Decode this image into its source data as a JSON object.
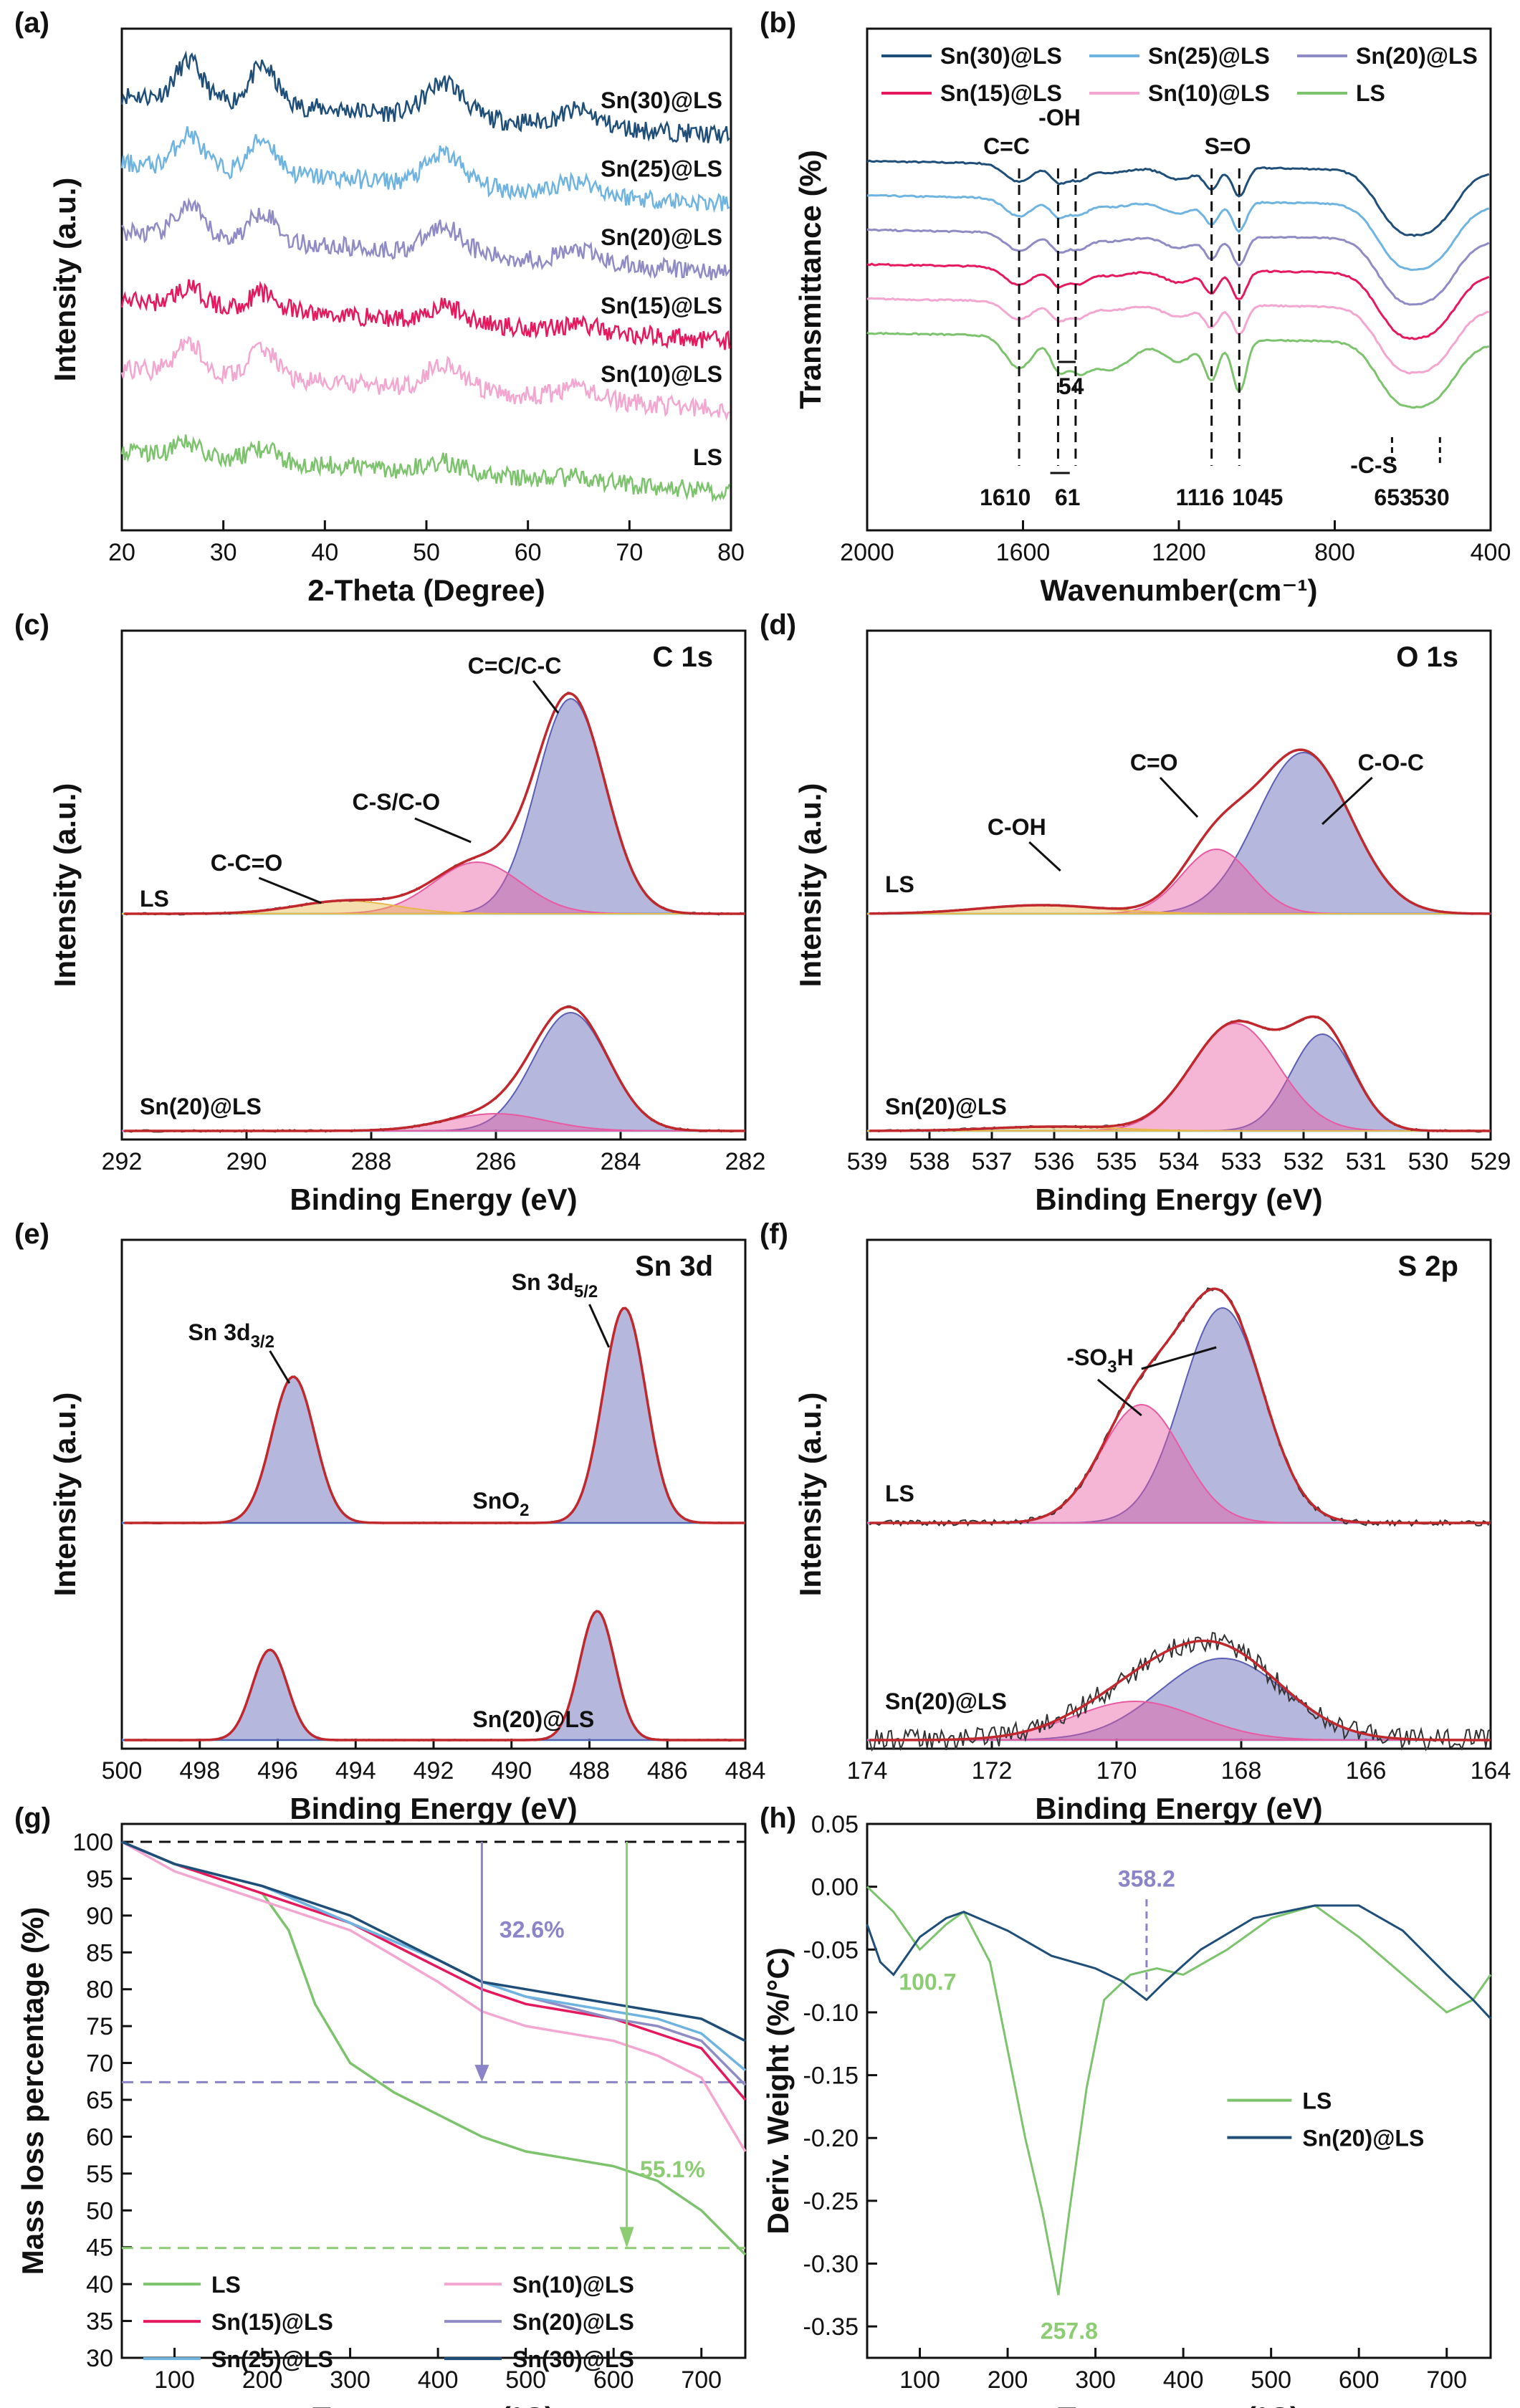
{
  "figure": {
    "colors": {
      "sn30": "#1f4e79",
      "sn25": "#6fb4e0",
      "sn20": "#8f8bc4",
      "sn15": "#e6195e",
      "sn10": "#f3a6cf",
      "ls": "#7dc36e",
      "fit": "#c0282d",
      "raw": "#333333",
      "base": "#7fd0df",
      "fill_blue": "#5b5fb3",
      "fill_pink": "#e85aa2",
      "fill_yellow": "#e8b84b",
      "ann_purple": "#8a84c8",
      "ann_green": "#8ccc73"
    }
  },
  "chart_data": [
    {
      "id": "a",
      "panel_label": "(a)",
      "type": "line",
      "xlabel": "2-Theta (Degree)",
      "ylabel": "Intensity (a.u.)",
      "xlim": [
        20,
        80
      ],
      "xticks": [
        "20",
        "30",
        "40",
        "50",
        "60",
        "70",
        "80"
      ],
      "peaks": [
        26.6,
        33.9,
        51.8,
        65.0
      ],
      "series": [
        {
          "name": "Sn(30)@LS",
          "color": "sn30",
          "offset": 5.2,
          "amp": 1.0
        },
        {
          "name": "Sn(25)@LS",
          "color": "sn25",
          "offset": 4.2,
          "amp": 0.9
        },
        {
          "name": "Sn(20)@LS",
          "color": "sn20",
          "offset": 3.2,
          "amp": 0.8
        },
        {
          "name": "Sn(15)@LS",
          "color": "sn15",
          "offset": 2.2,
          "amp": 0.45
        },
        {
          "name": "Sn(10)@LS",
          "color": "sn10",
          "offset": 1.2,
          "amp": 0.8
        },
        {
          "name": "LS",
          "color": "ls",
          "offset": 0.0,
          "amp": 0.3
        }
      ]
    },
    {
      "id": "b",
      "panel_label": "(b)",
      "type": "line",
      "xlabel": "Wavenumber(cm⁻¹)",
      "ylabel": "Transmittance (%)",
      "xlim": [
        2000,
        400
      ],
      "xticks": [
        "2000",
        "1600",
        "1200",
        "800",
        "400"
      ],
      "legend": [
        "Sn(30)@LS",
        "Sn(25)@LS",
        "Sn(20)@LS",
        "Sn(15)@LS",
        "Sn(10)@LS",
        "LS"
      ],
      "annotations": {
        "cc": "C=C",
        "oh": "-OH",
        "so": "S=O",
        "cs": "-C-S",
        "w1610": "1610",
        "w61": "61",
        "w54": "54",
        "w1116": "1116",
        "w1045": "1045",
        "w653": "653",
        "w530": "530"
      },
      "vlines": [
        1610,
        1510,
        1465,
        1116,
        1045
      ],
      "series": [
        {
          "name": "Sn(30)@LS",
          "color": "sn30",
          "offset": 5
        },
        {
          "name": "Sn(25)@LS",
          "color": "sn25",
          "offset": 4
        },
        {
          "name": "Sn(20)@LS",
          "color": "sn20",
          "offset": 3
        },
        {
          "name": "Sn(15)@LS",
          "color": "sn15",
          "offset": 2
        },
        {
          "name": "Sn(10)@LS",
          "color": "sn10",
          "offset": 1
        },
        {
          "name": "LS",
          "color": "ls",
          "offset": 0
        }
      ]
    },
    {
      "id": "c",
      "panel_label": "(c)",
      "type": "line",
      "title": "C 1s",
      "xlabel": "Binding Energy (eV)",
      "ylabel": "Intensity (a.u.)",
      "xlim": [
        292,
        282
      ],
      "xticks": [
        "292",
        "290",
        "288",
        "286",
        "284",
        "282"
      ],
      "labels": {
        "top": "LS",
        "bottom": "Sn(20)@LS",
        "p1": "C=C/C-C",
        "p2": "C-S/C-O",
        "p3": "C-C=O"
      },
      "top": [
        {
          "center": 284.8,
          "height": 1.0,
          "width": 0.55,
          "fill": "fill_blue"
        },
        {
          "center": 286.3,
          "height": 0.24,
          "width": 0.7,
          "fill": "fill_pink"
        },
        {
          "center": 288.4,
          "height": 0.06,
          "width": 0.8,
          "fill": "fill_yellow"
        }
      ],
      "bottom": [
        {
          "center": 284.8,
          "height": 0.55,
          "width": 0.6,
          "fill": "fill_blue"
        },
        {
          "center": 286.0,
          "height": 0.08,
          "width": 0.8,
          "fill": "fill_pink"
        }
      ]
    },
    {
      "id": "d",
      "panel_label": "(d)",
      "type": "line",
      "title": "O 1s",
      "xlabel": "Binding Energy (eV)",
      "ylabel": "Intensity (a.u.)",
      "xlim": [
        539,
        529
      ],
      "xticks": [
        "539",
        "538",
        "537",
        "536",
        "535",
        "534",
        "533",
        "532",
        "531",
        "530",
        "529"
      ],
      "labels": {
        "top": "LS",
        "bottom": "Sn(20)@LS",
        "p1": "C-OH",
        "p2": "C=O",
        "p3": "C-O-C"
      },
      "top": [
        {
          "center": 532.0,
          "height": 0.75,
          "width": 0.75,
          "fill": "fill_blue"
        },
        {
          "center": 533.4,
          "height": 0.3,
          "width": 0.55,
          "fill": "fill_pink"
        },
        {
          "center": 536.2,
          "height": 0.04,
          "width": 1.0,
          "fill": "fill_yellow"
        }
      ],
      "bottom": [
        {
          "center": 531.7,
          "height": 0.45,
          "width": 0.5,
          "fill": "fill_blue"
        },
        {
          "center": 533.1,
          "height": 0.5,
          "width": 0.7,
          "fill": "fill_pink"
        },
        {
          "center": 536.0,
          "height": 0.02,
          "width": 1.0,
          "fill": "fill_yellow"
        }
      ]
    },
    {
      "id": "e",
      "panel_label": "(e)",
      "type": "line",
      "title": "Sn 3d",
      "xlabel": "Binding Energy (eV)",
      "ylabel": "Intensity (a.u.)",
      "xlim": [
        500,
        484
      ],
      "xticks": [
        "500",
        "498",
        "496",
        "494",
        "492",
        "490",
        "488",
        "486",
        "484"
      ],
      "labels": {
        "top": "SnO",
        "top_sub": "2",
        "bottom": "Sn(20)@LS",
        "p1": "Sn 3d",
        "p1_sub": "3/2",
        "p2": "Sn 3d",
        "p2_sub": "5/2"
      },
      "top": [
        {
          "center": 487.1,
          "height": 1.0,
          "width": 0.55,
          "fill": "fill_blue"
        },
        {
          "center": 495.6,
          "height": 0.68,
          "width": 0.55,
          "fill": "fill_blue"
        }
      ],
      "bottom": [
        {
          "center": 487.8,
          "height": 0.6,
          "width": 0.45,
          "fill": "fill_blue"
        },
        {
          "center": 496.2,
          "height": 0.42,
          "width": 0.45,
          "fill": "fill_blue"
        }
      ]
    },
    {
      "id": "f",
      "panel_label": "(f)",
      "type": "line",
      "title": "S 2p",
      "xlabel": "Binding Energy (eV)",
      "ylabel": "Intensity (a.u.)",
      "xlim": [
        174,
        164
      ],
      "xticks": [
        "174",
        "172",
        "170",
        "168",
        "166",
        "164"
      ],
      "labels": {
        "top": "LS",
        "bottom": "Sn(20)@LS",
        "p1": "-SO",
        "p1_sub": "3",
        "p1_end": "H"
      },
      "top": [
        {
          "center": 168.3,
          "height": 1.0,
          "width": 0.65,
          "fill": "fill_blue"
        },
        {
          "center": 169.6,
          "height": 0.55,
          "width": 0.65,
          "fill": "fill_pink"
        }
      ],
      "bottom": [
        {
          "center": 168.3,
          "height": 0.38,
          "width": 1.0,
          "fill": "fill_blue"
        },
        {
          "center": 169.7,
          "height": 0.18,
          "width": 1.0,
          "fill": "fill_pink"
        }
      ]
    },
    {
      "id": "g",
      "panel_label": "(g)",
      "type": "line",
      "xlabel": "Temperature (°C)",
      "ylabel": "Mass loss percentage (%)",
      "xlim": [
        40,
        750
      ],
      "ylim": [
        30,
        100
      ],
      "xticks": [
        "100",
        "200",
        "300",
        "400",
        "500",
        "600",
        "700"
      ],
      "yticks": [
        "30",
        "35",
        "40",
        "45",
        "50",
        "55",
        "60",
        "65",
        "70",
        "75",
        "80",
        "85",
        "90",
        "95",
        "100"
      ],
      "annotations": {
        "loss_sn": "32.6%",
        "loss_ls": "55.1%"
      },
      "legend": [
        "LS",
        "Sn(10)@LS",
        "Sn(15)@LS",
        "Sn(20)@LS",
        "Sn(25)@LS",
        "Sn(30)@LS"
      ],
      "series": [
        {
          "name": "LS",
          "color": "ls",
          "x": [
            40,
            100,
            150,
            200,
            230,
            260,
            300,
            350,
            400,
            450,
            500,
            550,
            600,
            650,
            700,
            750
          ],
          "y": [
            100,
            97,
            95,
            93,
            88,
            78,
            70,
            66,
            63,
            60,
            58,
            57,
            56,
            54,
            50,
            44
          ]
        },
        {
          "name": "Sn(10)@LS",
          "color": "sn10",
          "x": [
            40,
            100,
            200,
            300,
            400,
            450,
            500,
            600,
            650,
            700,
            750
          ],
          "y": [
            100,
            96,
            92,
            88,
            81,
            77,
            75,
            73,
            71,
            68,
            58
          ]
        },
        {
          "name": "Sn(15)@LS",
          "color": "sn15",
          "x": [
            40,
            100,
            200,
            300,
            400,
            450,
            500,
            600,
            650,
            700,
            750
          ],
          "y": [
            100,
            97,
            93,
            89,
            83,
            80,
            78,
            76,
            74,
            72,
            65
          ]
        },
        {
          "name": "Sn(20)@LS",
          "color": "sn20",
          "x": [
            40,
            100,
            200,
            300,
            400,
            450,
            500,
            600,
            650,
            700,
            750
          ],
          "y": [
            100,
            97,
            94,
            89,
            84,
            81,
            79,
            76,
            75,
            73,
            67
          ]
        },
        {
          "name": "Sn(25)@LS",
          "color": "sn25",
          "x": [
            40,
            100,
            200,
            300,
            400,
            450,
            500,
            600,
            650,
            700,
            750
          ],
          "y": [
            100,
            97,
            94,
            89,
            84,
            81,
            79,
            77,
            76,
            74,
            69
          ]
        },
        {
          "name": "Sn(30)@LS",
          "color": "sn30",
          "x": [
            40,
            100,
            200,
            300,
            400,
            450,
            500,
            600,
            650,
            700,
            750
          ],
          "y": [
            100,
            97,
            94,
            90,
            84,
            81,
            80,
            78,
            77,
            76,
            73
          ]
        }
      ],
      "hlines": [
        {
          "y": 100,
          "color": "#111111"
        },
        {
          "y": 67.4,
          "color": "ann_purple"
        },
        {
          "y": 44.9,
          "color": "ann_green"
        }
      ]
    },
    {
      "id": "h",
      "panel_label": "(h)",
      "type": "line",
      "xlabel": "Temperature (°C)",
      "ylabel": "Deriv. Weight (%/°C)",
      "xlim": [
        40,
        750
      ],
      "ylim": [
        -0.375,
        0.05
      ],
      "xticks": [
        "100",
        "200",
        "300",
        "400",
        "500",
        "600",
        "700"
      ],
      "yticks": [
        "0.05",
        "0.00",
        "-0.05",
        "-0.10",
        "-0.15",
        "-0.20",
        "-0.25",
        "-0.30",
        "-0.35"
      ],
      "annotations": {
        "peak1": "100.7",
        "peak2": "257.8",
        "peak3": "358.2"
      },
      "legend": [
        "LS",
        "Sn(20)@LS"
      ],
      "series": [
        {
          "name": "LS",
          "color": "ls",
          "x": [
            40,
            70,
            100,
            130,
            150,
            180,
            200,
            220,
            240,
            257.8,
            270,
            290,
            310,
            340,
            370,
            400,
            450,
            500,
            550,
            600,
            650,
            700,
            730,
            750
          ],
          "y": [
            0.0,
            -0.02,
            -0.05,
            -0.03,
            -0.02,
            -0.06,
            -0.13,
            -0.2,
            -0.26,
            -0.325,
            -0.26,
            -0.16,
            -0.09,
            -0.07,
            -0.065,
            -0.07,
            -0.05,
            -0.025,
            -0.015,
            -0.04,
            -0.07,
            -0.1,
            -0.09,
            -0.07
          ]
        },
        {
          "name": "Sn(20)@LS",
          "color": "sn30",
          "x": [
            40,
            55,
            70,
            100,
            130,
            150,
            200,
            250,
            300,
            330,
            358.2,
            380,
            420,
            480,
            550,
            600,
            650,
            700,
            730,
            750
          ],
          "y": [
            -0.03,
            -0.06,
            -0.07,
            -0.04,
            -0.025,
            -0.02,
            -0.035,
            -0.055,
            -0.065,
            -0.075,
            -0.09,
            -0.075,
            -0.05,
            -0.025,
            -0.015,
            -0.015,
            -0.035,
            -0.07,
            -0.09,
            -0.105
          ]
        }
      ]
    }
  ]
}
